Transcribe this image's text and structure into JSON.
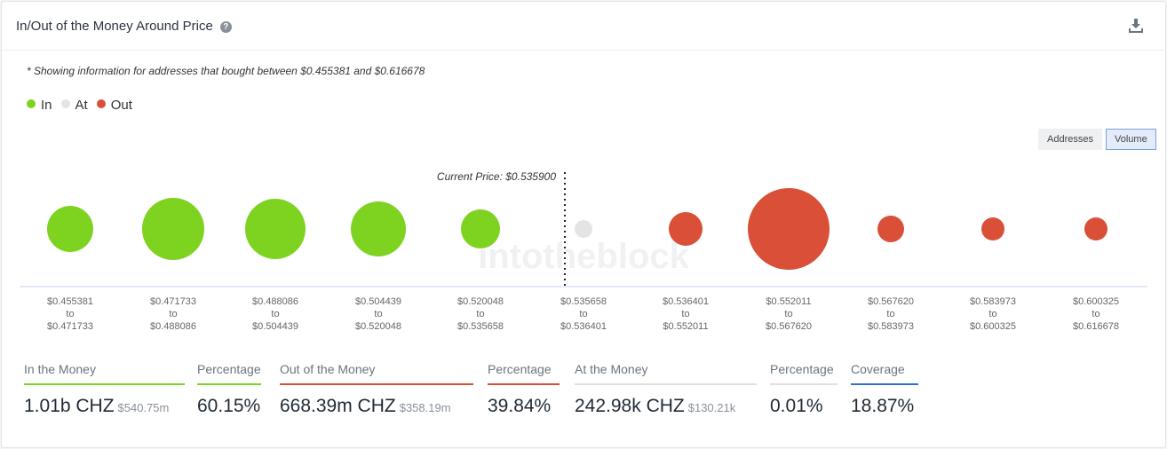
{
  "header": {
    "title": "In/Out of the Money Around Price",
    "help_icon": "question-circle-icon",
    "download_icon": "download-icon"
  },
  "note": "* Showing information for addresses that bought between $0.455381 and $0.616678",
  "legend": [
    {
      "label": "In",
      "color": "#7ed321"
    },
    {
      "label": "At",
      "color": "#e4e4e4"
    },
    {
      "label": "Out",
      "color": "#d94f37"
    }
  ],
  "toggles": {
    "addresses": "Addresses",
    "volume": "Volume",
    "active": "Volume"
  },
  "watermark": "intotheblock",
  "chart_data": {
    "type": "bubble",
    "current_price_label": "Current Price: $0.535900",
    "categories": [
      {
        "from": "$0.455381",
        "to": "$0.471733",
        "status": "In",
        "relative_volume": 676
      },
      {
        "from": "$0.471733",
        "to": "$0.488086",
        "status": "In",
        "relative_volume": 1225
      },
      {
        "from": "$0.488086",
        "to": "$0.504439",
        "status": "In",
        "relative_volume": 1156
      },
      {
        "from": "$0.504439",
        "to": "$0.520048",
        "status": "In",
        "relative_volume": 961
      },
      {
        "from": "$0.520048",
        "to": "$0.535658",
        "status": "In",
        "relative_volume": 484
      },
      {
        "from": "$0.535658",
        "to": "$0.536401",
        "status": "At",
        "relative_volume": 100
      },
      {
        "from": "$0.536401",
        "to": "$0.552011",
        "status": "Out",
        "relative_volume": 361
      },
      {
        "from": "$0.552011",
        "to": "$0.567620",
        "status": "Out",
        "relative_volume": 2116
      },
      {
        "from": "$0.567620",
        "to": "$0.583973",
        "status": "Out",
        "relative_volume": 225
      },
      {
        "from": "$0.583973",
        "to": "$0.600325",
        "status": "Out",
        "relative_volume": 169
      },
      {
        "from": "$0.600325",
        "to": "$0.616678",
        "status": "Out",
        "relative_volume": 169
      }
    ],
    "to_word": "to"
  },
  "stats": [
    {
      "label": "In the Money",
      "value": "1.01b CHZ",
      "sub": "$540.75m",
      "color": "#7ed321"
    },
    {
      "label": "Percentage",
      "value": "60.15%",
      "sub": "",
      "color": "#7ed321"
    },
    {
      "label": "Out of the Money",
      "value": "668.39m CHZ",
      "sub": "$358.19m",
      "color": "#d94f37"
    },
    {
      "label": "Percentage",
      "value": "39.84%",
      "sub": "",
      "color": "#d94f37"
    },
    {
      "label": "At the Money",
      "value": "242.98k CHZ",
      "sub": "$130.21k",
      "color": "#e0e0e0"
    },
    {
      "label": "Percentage",
      "value": "0.01%",
      "sub": "",
      "color": "#e0e0e0"
    },
    {
      "label": "Coverage",
      "value": "18.87%",
      "sub": "",
      "color": "#2f6fe0"
    }
  ]
}
